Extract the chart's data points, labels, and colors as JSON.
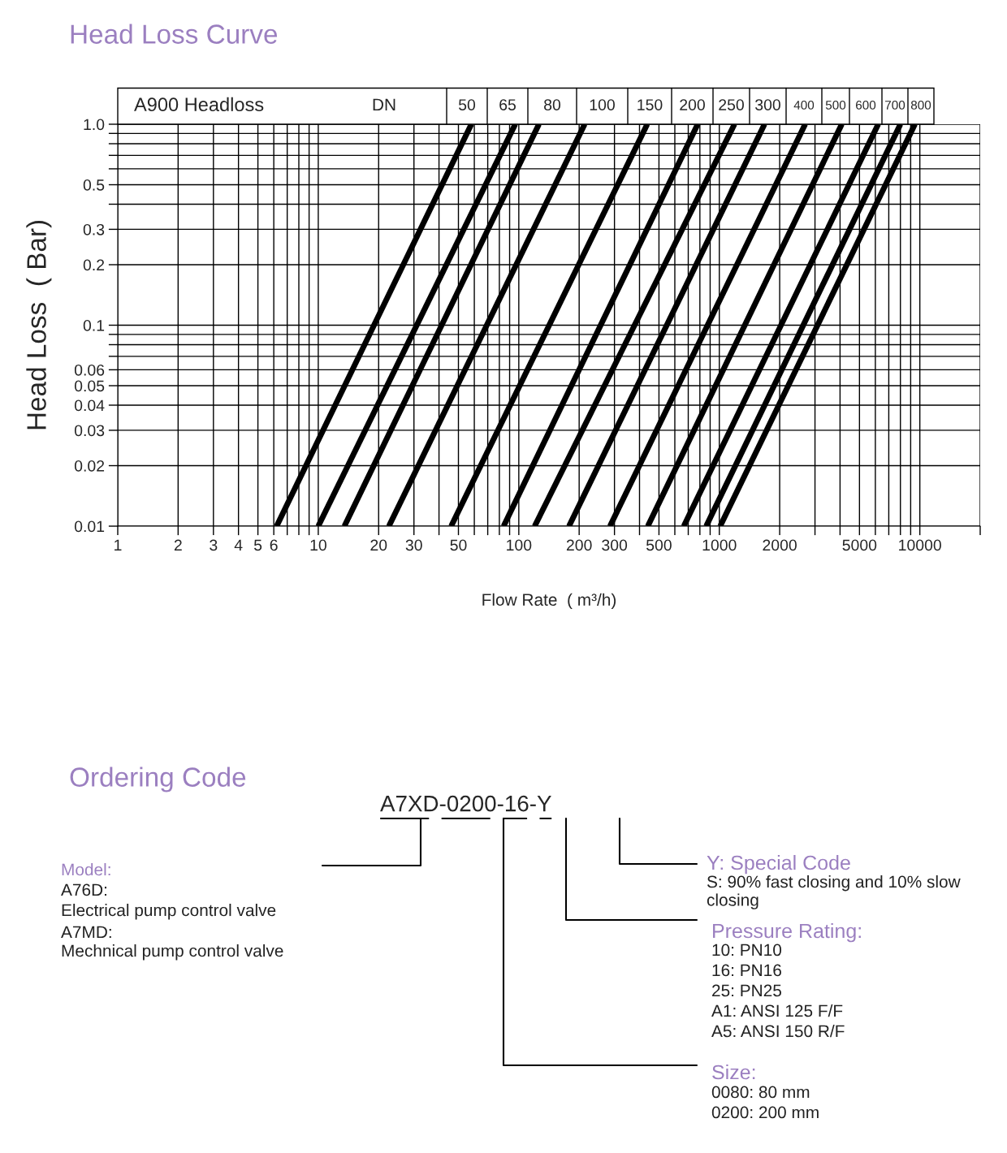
{
  "chart_data": [
    {
      "type": "line",
      "title": "Head Loss Curve",
      "subtitle": "A900 Headloss",
      "xlabel": "Flow Rate  ( m³/h)",
      "ylabel": "Head Loss  ( Bar)",
      "log": "xy",
      "grid": true,
      "legend": "top",
      "marker": "none",
      "line_style": "solid",
      "annotations": [
        "DN"
      ],
      "xlim": [
        1,
        20000
      ],
      "ylim": [
        0.01,
        1.0
      ],
      "xticks": [
        1,
        2,
        3,
        4,
        5,
        6,
        {
          "value": 7,
          "label": null
        },
        {
          "value": 8,
          "label": null
        },
        {
          "value": 9,
          "label": null
        },
        10,
        20,
        30,
        {
          "value": 40,
          "label": null
        },
        50,
        {
          "value": 60,
          "label": null
        },
        {
          "value": 70,
          "label": null
        },
        {
          "value": 80,
          "label": null
        },
        {
          "value": 90,
          "label": null
        },
        100,
        200,
        300,
        {
          "value": 400,
          "label": null
        },
        500,
        {
          "value": 600,
          "label": null
        },
        {
          "value": 700,
          "label": null
        },
        {
          "value": 800,
          "label": null
        },
        {
          "value": 900,
          "label": null
        },
        1000,
        2000,
        {
          "value": 3000,
          "label": null
        },
        {
          "value": 4000,
          "label": null
        },
        5000,
        {
          "value": 6000,
          "label": null
        },
        {
          "value": 7000,
          "label": null
        },
        {
          "value": 8000,
          "label": null
        },
        {
          "value": 9000,
          "label": null
        },
        10000,
        {
          "value": 20000,
          "label": null
        }
      ],
      "yticks": [
        0.01,
        0.02,
        0.03,
        0.04,
        0.05,
        0.06,
        {
          "value": 0.07,
          "label": null
        },
        {
          "value": 0.08,
          "label": null
        },
        {
          "value": 0.09,
          "label": null
        },
        0.1,
        0.2,
        0.3,
        {
          "value": 0.4,
          "label": null
        },
        0.5,
        {
          "value": 0.6,
          "label": null
        },
        {
          "value": 0.7,
          "label": null
        },
        {
          "value": 0.8,
          "label": null
        },
        {
          "value": 0.9,
          "label": null
        },
        {
          "value": 1.0,
          "label": "1.0"
        }
      ],
      "series": [
        {
          "name": "50",
          "color": "#000000",
          "x": [
            6.2,
            58
          ],
          "values": [
            0.01,
            1.0
          ]
        },
        {
          "name": "65",
          "color": "#000000",
          "x": [
            10,
            96
          ],
          "values": [
            0.01,
            1.0
          ]
        },
        {
          "name": "80",
          "color": "#000000",
          "x": [
            13.5,
            126
          ],
          "values": [
            0.01,
            1.0
          ]
        },
        {
          "name": "100",
          "color": "#000000",
          "x": [
            22.5,
            213
          ],
          "values": [
            0.01,
            1.0
          ]
        },
        {
          "name": "150",
          "color": "#000000",
          "x": [
            46,
            437
          ],
          "values": [
            0.01,
            1.0
          ]
        },
        {
          "name": "200",
          "color": "#000000",
          "x": [
            84,
            780
          ],
          "values": [
            0.01,
            1.0
          ]
        },
        {
          "name": "250",
          "color": "#000000",
          "x": [
            120,
            1190
          ],
          "values": [
            0.01,
            1.0
          ]
        },
        {
          "name": "300",
          "color": "#000000",
          "x": [
            178,
            1680
          ],
          "values": [
            0.01,
            1.0
          ]
        },
        {
          "name": "400",
          "color": "#000000",
          "x": [
            285,
            2680
          ],
          "values": [
            0.01,
            1.0
          ]
        },
        {
          "name": "500",
          "color": "#000000",
          "x": [
            440,
            4080
          ],
          "values": [
            0.01,
            1.0
          ]
        },
        {
          "name": "600",
          "color": "#000000",
          "x": [
            665,
            6200
          ],
          "values": [
            0.01,
            1.0
          ]
        },
        {
          "name": "700",
          "color": "#000000",
          "x": [
            860,
            8000
          ],
          "values": [
            0.01,
            1.0
          ]
        },
        {
          "name": "800",
          "color": "#000000",
          "x": [
            1010,
            9450
          ],
          "values": [
            0.01,
            1.0
          ]
        }
      ]
    },
    {
      "type": "other",
      "title": "Ordering Code",
      "subtitle": "A7XD-0200-16-Y",
      "annotations": [
        "Model:",
        "A76D:",
        "Electrical pump control valve",
        "A7MD:",
        "Mechnical pump control valve",
        "Y: Special Code",
        "S: 90% fast closing and 10% slow closing",
        "Pressure Rating:",
        "10: PN10",
        "16: PN16",
        "25: PN25",
        "A1: ANSI 125 F/F",
        "A5: ANSI 150 R/F",
        "Size:",
        "0080: 80 mm",
        "0200: 200 mm"
      ]
    }
  ]
}
